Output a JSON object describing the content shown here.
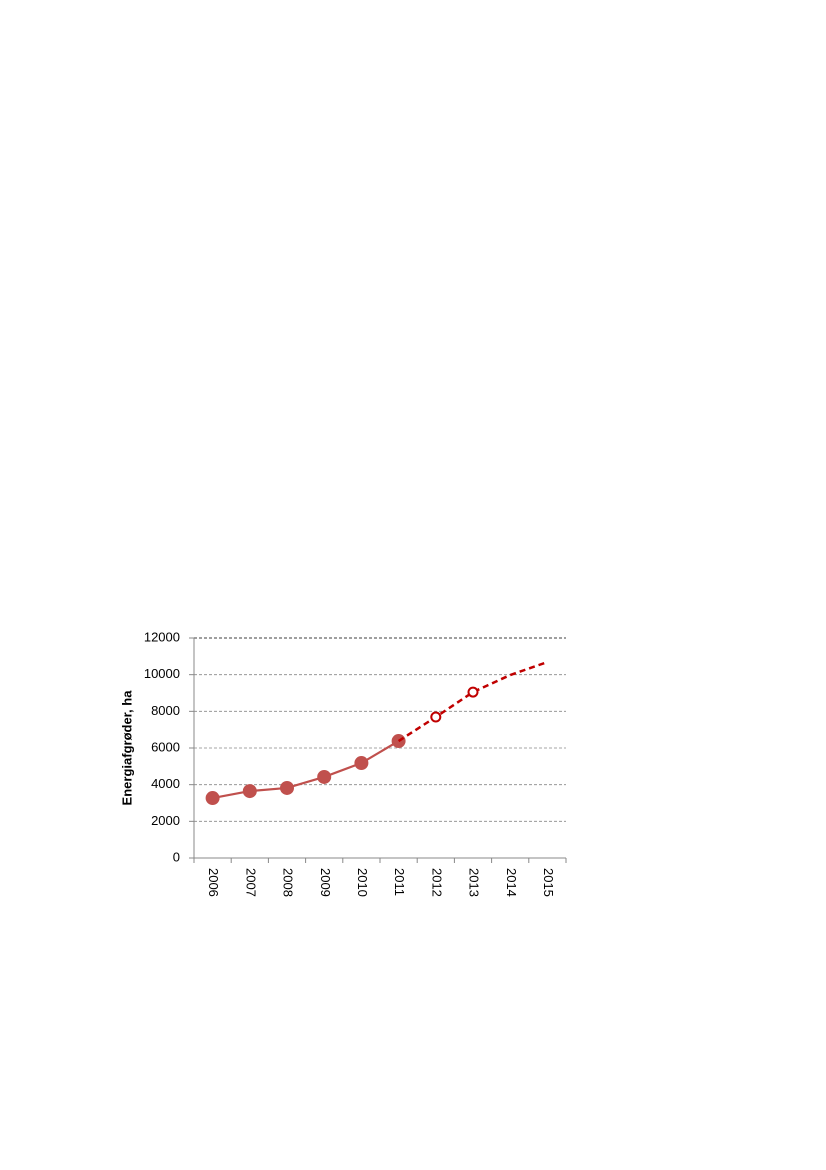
{
  "chart_data": {
    "type": "line",
    "y_label": "Energiafgrøder, ha",
    "categories": [
      "2006",
      "2007",
      "2008",
      "2009",
      "2010",
      "2011",
      "2012",
      "2013",
      "2014",
      "2015"
    ],
    "series": [
      {
        "color": "#c0504d",
        "line_style": "solid",
        "marker": "filled",
        "values": [
          3270,
          3650,
          3820,
          4420,
          5180,
          6380,
          null,
          null,
          null,
          null
        ]
      },
      {
        "color": "#c00000",
        "line_style": "dashed",
        "marker": "open",
        "marker_indices": [
          6,
          7
        ],
        "values": [
          null,
          null,
          null,
          null,
          null,
          6380,
          7690,
          9050,
          9980,
          10690
        ]
      }
    ],
    "ylim": [
      0,
      12000
    ],
    "yticks": [
      0,
      2000,
      4000,
      6000,
      8000,
      10000,
      12000
    ],
    "grid": true
  }
}
